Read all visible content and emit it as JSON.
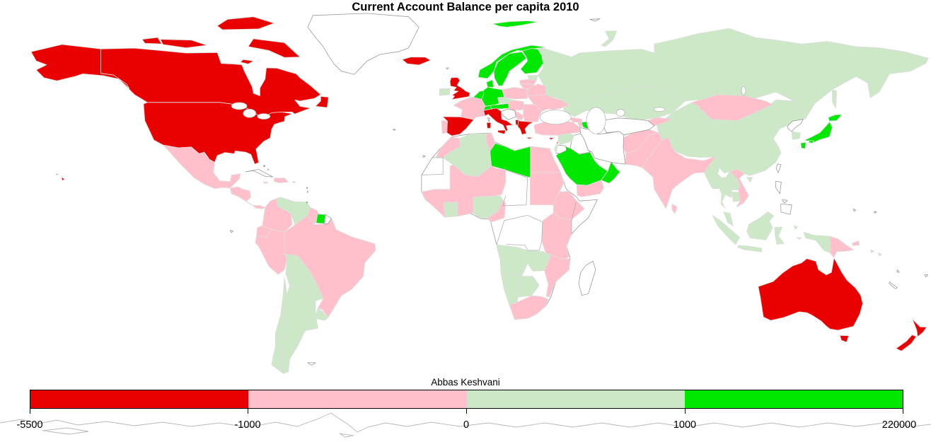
{
  "title": "Current Account Balance per capita 2010",
  "author_label": "Abbas Keshvani",
  "legend": {
    "ticks": [
      "-5500",
      "-1000",
      "0",
      "1000",
      "220000"
    ],
    "segments": [
      {
        "from": -5500,
        "to": -1000,
        "color": "#E90000"
      },
      {
        "from": -1000,
        "to": 0,
        "color": "#FFC0CB"
      },
      {
        "from": 0,
        "to": 1000,
        "color": "#CCE8C6"
      },
      {
        "from": 1000,
        "to": 220000,
        "color": "#00E800"
      }
    ],
    "no_data_color": "#FFFFFF"
  },
  "chart_data": {
    "type": "choropleth",
    "title": "Current Account Balance per capita 2010",
    "scale_breaks": [
      -5500,
      -1000,
      0,
      1000,
      220000
    ],
    "categories": {
      "strong_deficit": {
        "range": [
          -5500,
          -1000
        ],
        "color": "#E90000",
        "countries": [
          "United States",
          "Canada",
          "Australia",
          "New Zealand",
          "Iceland",
          "United Kingdom",
          "Spain",
          "Italy",
          "Greece",
          "Albania",
          "Cyprus",
          "Lebanon",
          "Bahamas"
        ]
      },
      "mild_deficit": {
        "range": [
          -1000,
          0
        ],
        "color": "#FFC0CB",
        "countries": [
          "Mexico",
          "Guatemala",
          "Honduras",
          "El Salvador",
          "Nicaragua",
          "Costa Rica",
          "Panama",
          "Jamaica",
          "Haiti",
          "Dominican Republic",
          "Puerto Rico",
          "Colombia",
          "Ecuador",
          "Peru",
          "Brazil",
          "Guyana",
          "France",
          "Portugal",
          "Poland",
          "Lithuania",
          "Latvia",
          "Belarus",
          "Ukraine",
          "Romania",
          "Bulgaria",
          "Serbia",
          "Hungary",
          "Slovakia",
          "Turkey",
          "Georgia",
          "Armenia",
          "Morocco",
          "Tunisia",
          "Egypt",
          "Sudan",
          "Senegal",
          "Guinea",
          "Ghana",
          "Burkina Faso",
          "Mali",
          "Niger",
          "Cameroon",
          "Ethiopia",
          "Kenya",
          "Tanzania",
          "Mozambique",
          "South Africa",
          "Yemen",
          "Afghanistan",
          "Pakistan",
          "India",
          "Bangladesh",
          "Sri Lanka",
          "Kyrgyzstan",
          "Mongolia",
          "Vietnam",
          "Papua New Guinea"
        ]
      },
      "mild_surplus": {
        "range": [
          0,
          1000
        ],
        "color": "#CCE8C6",
        "countries": [
          "Russia",
          "Kazakhstan",
          "China",
          "South Korea",
          "Ireland",
          "Estonia",
          "Czech Republic",
          "Syria",
          "Israel",
          "Algeria",
          "Nigeria",
          "Ivory Coast",
          "Angola",
          "Zambia",
          "Namibia",
          "Botswana",
          "Venezuela",
          "Bolivia",
          "Paraguay",
          "Argentina",
          "Chile",
          "Uruguay",
          "Myanmar",
          "Thailand",
          "Laos",
          "Cambodia",
          "Malaysia",
          "Indonesia",
          "Solomon Islands"
        ]
      },
      "strong_surplus": {
        "range": [
          1000,
          220000
        ],
        "color": "#00E800",
        "countries": [
          "Norway",
          "Sweden",
          "Finland",
          "Denmark",
          "Germany",
          "Netherlands",
          "Belgium",
          "Switzerland",
          "Austria",
          "Japan",
          "Libya",
          "Saudi Arabia",
          "Oman",
          "Azerbaijan",
          "Suriname",
          "Trinidad and Tobago"
        ]
      },
      "no_data": {
        "color": "#FFFFFF",
        "countries": [
          "Greenland",
          "Cuba",
          "Mauritania",
          "Western Sahara",
          "Chad",
          "Central African Republic",
          "DR Congo",
          "Somalia",
          "Zimbabwe",
          "Madagascar",
          "Iran",
          "Iraq",
          "Jordan",
          "Turkmenistan",
          "Uzbekistan",
          "Tajikistan",
          "North Korea",
          "Taiwan",
          "Philippines",
          "French Guiana",
          "Croatia",
          "Bosnia and Herzegovina",
          "New Caledonia",
          "Fiji",
          "Falkland Islands",
          "Antarctica"
        ]
      }
    }
  }
}
